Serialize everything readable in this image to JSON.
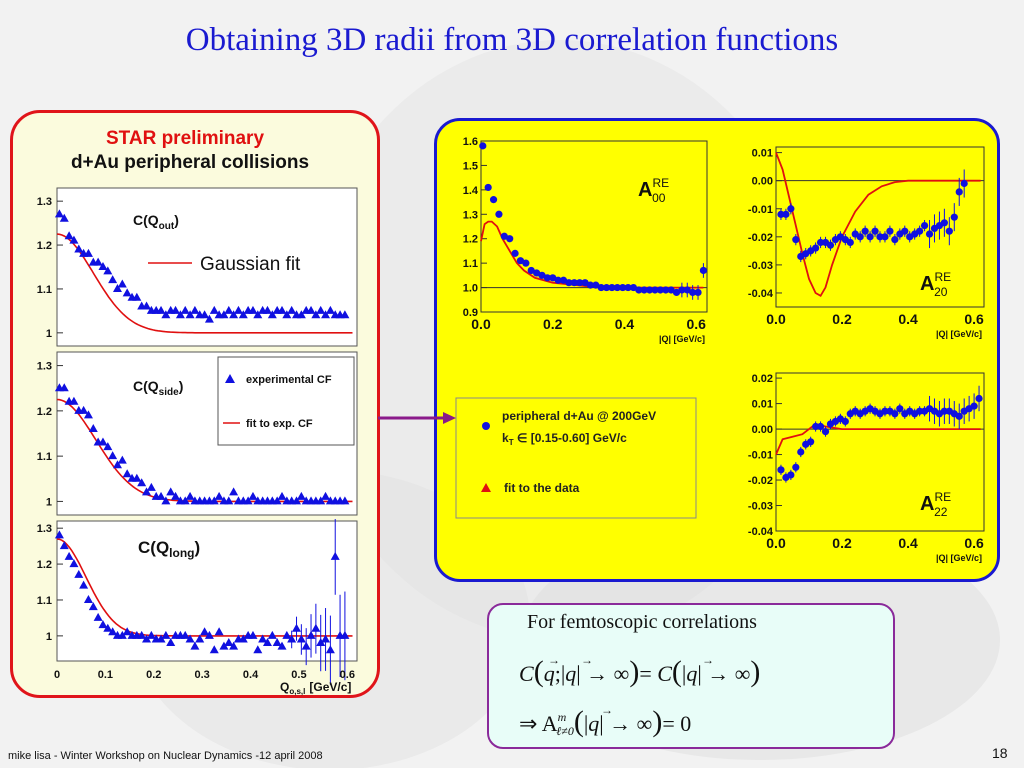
{
  "slide": {
    "title": "Obtaining 3D radii from 3D correlation functions",
    "footer": "mike lisa - Winter Workshop on Nuclear Dynamics -12 april 2008",
    "page_number": "18"
  },
  "left_panel": {
    "heading": "STAR preliminary",
    "subheading": "d+Au peripheral collisions",
    "gaussian_fit_label": "Gaussian fit",
    "x_axis_label": "Q",
    "x_axis_subscript": "o,s,l",
    "x_axis_unit": "[GeV/c]",
    "x_ticks": [
      "0",
      "0.1",
      "0.2",
      "0.3",
      "0.4",
      "0.5",
      "0.6"
    ],
    "legend_experimental": "experimental CF",
    "legend_fit": "fit to exp. CF"
  },
  "right_panel": {
    "legend_line1": "peripheral d+Au @ 200GeV",
    "legend_line2_prefix": "k",
    "legend_line2_sub": "T",
    "legend_line2_rest": " ∈ [0.15-0.60] GeV/c",
    "legend_fit": "fit to the data",
    "x_ticks": [
      "0.0",
      "0.2",
      "0.4",
      "0.6"
    ],
    "x_axis_label": "|Q| [GeV/c]"
  },
  "formula_box": {
    "heading": "For femtoscopic correlations"
  },
  "colors": {
    "data_blue": "#1010e0",
    "fit_red": "#e01010",
    "panel_yellow": "#ffff00",
    "title_blue": "#1a1ad0"
  },
  "chart_data": [
    {
      "type": "scatter",
      "name": "C(Q_out)",
      "label": "C(Q",
      "sub": "out",
      "xlim": [
        0,
        0.62
      ],
      "ylim": [
        0.97,
        1.33
      ],
      "y_ticks": [
        1.0,
        1.1,
        1.2,
        1.3
      ],
      "x": [
        0.005,
        0.015,
        0.025,
        0.035,
        0.045,
        0.055,
        0.065,
        0.075,
        0.085,
        0.095,
        0.105,
        0.115,
        0.125,
        0.135,
        0.145,
        0.155,
        0.165,
        0.175,
        0.185,
        0.195,
        0.205,
        0.215,
        0.225,
        0.235,
        0.245,
        0.255,
        0.265,
        0.275,
        0.285,
        0.295,
        0.305,
        0.315,
        0.325,
        0.335,
        0.345,
        0.355,
        0.365,
        0.375,
        0.385,
        0.395,
        0.405,
        0.415,
        0.425,
        0.435,
        0.445,
        0.455,
        0.465,
        0.475,
        0.485,
        0.495,
        0.505,
        0.515,
        0.525,
        0.535,
        0.545,
        0.555,
        0.565,
        0.575,
        0.585,
        0.595
      ],
      "y": [
        1.27,
        1.26,
        1.22,
        1.21,
        1.19,
        1.18,
        1.18,
        1.16,
        1.16,
        1.15,
        1.14,
        1.12,
        1.1,
        1.11,
        1.09,
        1.08,
        1.08,
        1.06,
        1.06,
        1.05,
        1.05,
        1.05,
        1.04,
        1.05,
        1.05,
        1.04,
        1.05,
        1.04,
        1.05,
        1.04,
        1.04,
        1.03,
        1.05,
        1.04,
        1.04,
        1.05,
        1.04,
        1.05,
        1.04,
        1.05,
        1.05,
        1.04,
        1.05,
        1.05,
        1.04,
        1.05,
        1.05,
        1.04,
        1.05,
        1.04,
        1.04,
        1.05,
        1.05,
        1.04,
        1.05,
        1.04,
        1.05,
        1.04,
        1.04,
        1.04
      ],
      "fit": {
        "base": 1.0,
        "amp": 0.225,
        "sigma": 0.075
      }
    },
    {
      "type": "scatter",
      "name": "C(Q_side)",
      "label": "C(Q",
      "sub": "side",
      "xlim": [
        0,
        0.62
      ],
      "ylim": [
        0.97,
        1.33
      ],
      "y_ticks": [
        1.0,
        1.1,
        1.2,
        1.3
      ],
      "x": [
        0.005,
        0.015,
        0.025,
        0.035,
        0.045,
        0.055,
        0.065,
        0.075,
        0.085,
        0.095,
        0.105,
        0.115,
        0.125,
        0.135,
        0.145,
        0.155,
        0.165,
        0.175,
        0.185,
        0.195,
        0.205,
        0.215,
        0.225,
        0.235,
        0.245,
        0.255,
        0.265,
        0.275,
        0.285,
        0.295,
        0.305,
        0.315,
        0.325,
        0.335,
        0.345,
        0.355,
        0.365,
        0.375,
        0.385,
        0.395,
        0.405,
        0.415,
        0.425,
        0.435,
        0.445,
        0.455,
        0.465,
        0.475,
        0.485,
        0.495,
        0.505,
        0.515,
        0.525,
        0.535,
        0.545,
        0.555,
        0.565,
        0.575,
        0.585,
        0.595
      ],
      "y": [
        1.25,
        1.25,
        1.22,
        1.22,
        1.2,
        1.2,
        1.19,
        1.16,
        1.13,
        1.13,
        1.12,
        1.1,
        1.08,
        1.09,
        1.06,
        1.05,
        1.05,
        1.04,
        1.02,
        1.03,
        1.01,
        1.01,
        1.0,
        1.02,
        1.01,
        1.0,
        1.0,
        1.01,
        1.0,
        1.0,
        1.0,
        1.0,
        1.0,
        1.01,
        1.0,
        1.0,
        1.02,
        1.0,
        1.0,
        1.0,
        1.01,
        1.0,
        1.0,
        1.0,
        1.0,
        1.0,
        1.01,
        1.0,
        1.0,
        1.0,
        1.01,
        1.0,
        1.0,
        1.0,
        1.0,
        1.01,
        1.0,
        1.0,
        1.0,
        1.0
      ],
      "fit": {
        "base": 1.0,
        "amp": 0.225,
        "sigma": 0.08
      }
    },
    {
      "type": "scatter",
      "name": "C(Q_long)",
      "label": "C(Q",
      "sub": "long",
      "xlim": [
        0,
        0.62
      ],
      "ylim": [
        0.93,
        1.32
      ],
      "y_ticks": [
        1.0,
        1.1,
        1.2,
        1.3
      ],
      "x": [
        0.005,
        0.015,
        0.025,
        0.035,
        0.045,
        0.055,
        0.065,
        0.075,
        0.085,
        0.095,
        0.105,
        0.115,
        0.125,
        0.135,
        0.145,
        0.155,
        0.165,
        0.175,
        0.185,
        0.195,
        0.205,
        0.215,
        0.225,
        0.235,
        0.245,
        0.255,
        0.265,
        0.275,
        0.285,
        0.295,
        0.305,
        0.315,
        0.325,
        0.335,
        0.345,
        0.355,
        0.365,
        0.375,
        0.385,
        0.395,
        0.405,
        0.415,
        0.425,
        0.435,
        0.445,
        0.455,
        0.465,
        0.475,
        0.485,
        0.495,
        0.505,
        0.515,
        0.525,
        0.535,
        0.545,
        0.555,
        0.565,
        0.575,
        0.585,
        0.595
      ],
      "y": [
        1.28,
        1.25,
        1.22,
        1.2,
        1.17,
        1.14,
        1.1,
        1.08,
        1.05,
        1.03,
        1.02,
        1.01,
        1.0,
        1.0,
        1.01,
        1.0,
        1.0,
        1.0,
        0.99,
        1.0,
        0.99,
        0.99,
        1.0,
        0.98,
        1.0,
        1.0,
        1.0,
        0.99,
        0.97,
        0.99,
        1.01,
        1.0,
        0.96,
        1.01,
        0.97,
        0.98,
        0.97,
        0.99,
        0.99,
        1.0,
        1.0,
        0.96,
        0.99,
        0.98,
        1.0,
        0.98,
        0.97,
        1.0,
        0.99,
        1.02,
        0.99,
        0.97,
        1.0,
        1.02,
        0.98,
        0.99,
        0.96,
        1.22,
        1.0,
        1.0
      ],
      "errors_from_x": 0.48,
      "fit": {
        "base": 1.0,
        "amp": 0.27,
        "sigma": 0.06
      }
    },
    {
      "type": "scatter",
      "name": "A00 RE",
      "xlim": [
        0,
        0.63
      ],
      "ylim": [
        0.9,
        1.6
      ],
      "y_ticks": [
        0.9,
        1.0,
        1.1,
        1.2,
        1.3,
        1.4,
        1.5,
        1.6
      ],
      "y_tick_labels": [
        "0.9",
        "1.0",
        "1.1",
        "1.2",
        "1.3",
        "1.4",
        "1.5",
        "1.6"
      ],
      "x": [
        0.005,
        0.02,
        0.035,
        0.05,
        0.065,
        0.08,
        0.095,
        0.11,
        0.125,
        0.14,
        0.155,
        0.17,
        0.185,
        0.2,
        0.215,
        0.23,
        0.245,
        0.26,
        0.275,
        0.29,
        0.305,
        0.32,
        0.335,
        0.35,
        0.365,
        0.38,
        0.395,
        0.41,
        0.425,
        0.44,
        0.455,
        0.47,
        0.485,
        0.5,
        0.515,
        0.53,
        0.545,
        0.56,
        0.575,
        0.59,
        0.605,
        0.62
      ],
      "y": [
        1.58,
        1.41,
        1.36,
        1.3,
        1.21,
        1.2,
        1.14,
        1.11,
        1.1,
        1.07,
        1.06,
        1.05,
        1.04,
        1.04,
        1.03,
        1.03,
        1.02,
        1.02,
        1.02,
        1.02,
        1.01,
        1.01,
        1.0,
        1.0,
        1.0,
        1.0,
        1.0,
        1.0,
        1.0,
        0.99,
        0.99,
        0.99,
        0.99,
        0.99,
        0.99,
        0.99,
        0.98,
        0.99,
        0.99,
        0.98,
        0.98,
        1.07
      ],
      "fit_x": [
        0.0,
        0.01,
        0.02,
        0.03,
        0.045,
        0.06,
        0.08,
        0.1,
        0.12,
        0.15,
        0.2,
        0.3,
        0.4,
        0.5,
        0.6,
        0.62
      ],
      "fit_y": [
        1.19,
        1.26,
        1.27,
        1.27,
        1.25,
        1.2,
        1.15,
        1.1,
        1.07,
        1.04,
        1.02,
        1.005,
        1.0,
        1.0,
        1.0,
        1.0
      ],
      "annotation": {
        "letter": "A",
        "sup": "RE",
        "sub": "00"
      }
    },
    {
      "type": "scatter",
      "name": "A20 RE",
      "xlim": [
        0,
        0.63
      ],
      "ylim": [
        -0.045,
        0.012
      ],
      "y_ticks": [
        0.01,
        0.0,
        -0.01,
        -0.02,
        -0.03,
        -0.04
      ],
      "y_tick_labels": [
        "0.01",
        "0.00",
        "-0.01",
        "-0.02",
        "-0.03",
        "-0.04"
      ],
      "x": [
        0.015,
        0.03,
        0.045,
        0.06,
        0.075,
        0.09,
        0.105,
        0.12,
        0.135,
        0.15,
        0.165,
        0.18,
        0.195,
        0.21,
        0.225,
        0.24,
        0.255,
        0.27,
        0.285,
        0.3,
        0.315,
        0.33,
        0.345,
        0.36,
        0.375,
        0.39,
        0.405,
        0.42,
        0.435,
        0.45,
        0.465,
        0.48,
        0.495,
        0.51,
        0.525,
        0.54,
        0.555,
        0.57
      ],
      "y": [
        -0.012,
        -0.012,
        -0.01,
        -0.021,
        -0.027,
        -0.026,
        -0.025,
        -0.024,
        -0.022,
        -0.022,
        -0.023,
        -0.021,
        -0.02,
        -0.021,
        -0.022,
        -0.019,
        -0.02,
        -0.018,
        -0.02,
        -0.018,
        -0.02,
        -0.02,
        -0.018,
        -0.021,
        -0.019,
        -0.018,
        -0.02,
        -0.019,
        -0.018,
        -0.016,
        -0.019,
        -0.017,
        -0.016,
        -0.015,
        -0.018,
        -0.013,
        -0.004,
        -0.001
      ],
      "fit_x": [
        0.0,
        0.02,
        0.04,
        0.06,
        0.08,
        0.1,
        0.12,
        0.135,
        0.15,
        0.17,
        0.2,
        0.24,
        0.28,
        0.32,
        0.36,
        0.4,
        0.45,
        0.5,
        0.55,
        0.62
      ],
      "fit_y": [
        0.01,
        0.004,
        -0.006,
        -0.016,
        -0.026,
        -0.035,
        -0.04,
        -0.041,
        -0.038,
        -0.03,
        -0.02,
        -0.011,
        -0.005,
        -0.002,
        -0.0005,
        0.0,
        0.0,
        0.0,
        0.0,
        0.0
      ],
      "annotation": {
        "letter": "A",
        "sup": "RE",
        "sub": "20"
      }
    },
    {
      "type": "scatter",
      "name": "A22 RE",
      "xlim": [
        0,
        0.63
      ],
      "ylim": [
        -0.04,
        0.022
      ],
      "y_ticks": [
        0.02,
        0.01,
        0.0,
        -0.01,
        -0.02,
        -0.03,
        -0.04
      ],
      "y_tick_labels": [
        "0.02",
        "0.01",
        "0.00",
        "-0.01",
        "-0.02",
        "-0.03",
        "-0.04"
      ],
      "x": [
        0.015,
        0.03,
        0.045,
        0.06,
        0.075,
        0.09,
        0.105,
        0.12,
        0.135,
        0.15,
        0.165,
        0.18,
        0.195,
        0.21,
        0.225,
        0.24,
        0.255,
        0.27,
        0.285,
        0.3,
        0.315,
        0.33,
        0.345,
        0.36,
        0.375,
        0.39,
        0.405,
        0.42,
        0.435,
        0.45,
        0.465,
        0.48,
        0.495,
        0.51,
        0.525,
        0.54,
        0.555,
        0.57,
        0.585,
        0.6,
        0.615
      ],
      "y": [
        -0.016,
        -0.019,
        -0.018,
        -0.015,
        -0.009,
        -0.006,
        -0.005,
        0.001,
        0.001,
        -0.001,
        0.002,
        0.003,
        0.004,
        0.003,
        0.006,
        0.007,
        0.006,
        0.007,
        0.008,
        0.007,
        0.006,
        0.007,
        0.007,
        0.006,
        0.008,
        0.006,
        0.007,
        0.006,
        0.007,
        0.007,
        0.008,
        0.007,
        0.006,
        0.007,
        0.007,
        0.006,
        0.005,
        0.007,
        0.008,
        0.009,
        0.012
      ],
      "fit_x": [
        0.0,
        0.02,
        0.05,
        0.08,
        0.1,
        0.12,
        0.15,
        0.2,
        0.3,
        0.4,
        0.5,
        0.62
      ],
      "fit_y": [
        -0.01,
        -0.004,
        -0.003,
        -0.002,
        0.0,
        0.002,
        0.001,
        0.0,
        0.0,
        0.0,
        0.0,
        0.0
      ],
      "annotation": {
        "letter": "A",
        "sup": "RE",
        "sub": "22"
      }
    }
  ]
}
